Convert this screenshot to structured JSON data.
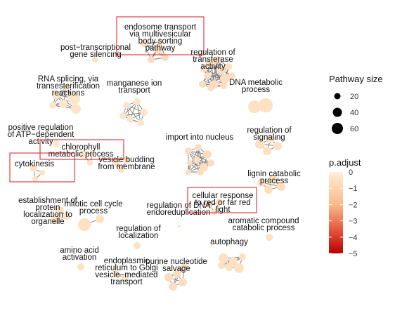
{
  "chart_data": {
    "type": "network",
    "clusters": [
      {
        "label": "endosome transport via multivesicular body sorting pathway",
        "lines": [
          "endosome transport",
          "via multivesicular",
          "body sorting",
          "pathway"
        ],
        "highlighted": true,
        "nodes": 5,
        "p": -0.7
      },
      {
        "label": "post-transcriptional gene silencing",
        "lines": [
          "post−transcriptional",
          "gene silencing"
        ],
        "highlighted": false,
        "nodes": 1,
        "p": -0.5
      },
      {
        "label": "regulation of transferase activity",
        "lines": [
          "regulation of",
          "transferase",
          "activity"
        ],
        "highlighted": false,
        "nodes": 12,
        "p": -0.6
      },
      {
        "label": "RNA splicing, via transesterification reactions",
        "lines": [
          "RNA splicing, via",
          "transesterification",
          "reactions"
        ],
        "highlighted": false,
        "nodes": 6,
        "p": -0.3
      },
      {
        "label": "manganese ion transport",
        "lines": [
          "manganese ion",
          "transport"
        ],
        "highlighted": false,
        "nodes": 6,
        "p": -0.3
      },
      {
        "label": "DNA metabolic process",
        "lines": [
          "DNA metabolic",
          "process"
        ],
        "highlighted": false,
        "nodes": 2,
        "p": -0.5
      },
      {
        "label": "positive regulation of ATP-dependent activity",
        "lines": [
          "positive regulation",
          "of ATP−dependent",
          "activity"
        ],
        "highlighted": false,
        "nodes": 1,
        "p": -0.3
      },
      {
        "label": "chlorophyll metabolic process",
        "lines": [
          "chlorophyll",
          "metabolic process"
        ],
        "highlighted": true,
        "nodes": 3,
        "p": -0.5
      },
      {
        "label": "cytokinesis",
        "lines": [
          "cytokinesis"
        ],
        "highlighted": true,
        "nodes": 3,
        "p": -0.5
      },
      {
        "label": "vesicle budding from membrane",
        "lines": [
          "vesicle budding",
          "from membrane"
        ],
        "highlighted": false,
        "nodes": 3,
        "p": -0.5
      },
      {
        "label": "import into nucleus",
        "lines": [
          "import into nucleus"
        ],
        "highlighted": false,
        "nodes": 9,
        "p": -0.6
      },
      {
        "label": "regulation of signaling",
        "lines": [
          "regulation of",
          "signaling"
        ],
        "highlighted": false,
        "nodes": 4,
        "p": -0.5
      },
      {
        "label": "lignin catabolic process",
        "lines": [
          "lignin catabolic",
          "process"
        ],
        "highlighted": false,
        "nodes": 4,
        "p": -0.6
      },
      {
        "label": "establishment of protein localization to organelle",
        "lines": [
          "establishment of",
          "protein",
          "localization to",
          "organelle"
        ],
        "highlighted": false,
        "nodes": 3,
        "p": -0.5
      },
      {
        "label": "mitotic cell cycle process",
        "lines": [
          "mitotic cell cycle",
          "process"
        ],
        "highlighted": false,
        "nodes": 2,
        "p": -0.5
      },
      {
        "label": "regulation of DNA endoreduplication",
        "lines": [
          "regulation of DNA",
          "endoreduplication"
        ],
        "highlighted": false,
        "nodes": 1,
        "p": -0.5
      },
      {
        "label": "cellular response to red or far red light",
        "lines": [
          "cellular response",
          "to red or far red",
          "light"
        ],
        "highlighted": true,
        "nodes": 3,
        "p": -0.6
      },
      {
        "label": "aromatic compound catabolic process",
        "lines": [
          "aromatic compound",
          "catabolic process"
        ],
        "highlighted": false,
        "nodes": 1,
        "p": -0.5
      },
      {
        "label": "regulation of localization",
        "lines": [
          "regulation of",
          "localization"
        ],
        "highlighted": false,
        "nodes": 1,
        "p": -0.5
      },
      {
        "label": "autophagy",
        "lines": [
          "autophagy"
        ],
        "highlighted": false,
        "nodes": 6,
        "p": -0.5
      },
      {
        "label": "amino acid activation",
        "lines": [
          "amino acid",
          "activation"
        ],
        "highlighted": false,
        "nodes": 1,
        "p": -0.5
      },
      {
        "label": "endoplasmic reticulum to Golgi vesicle-mediated transport",
        "lines": [
          "endoplasmic",
          "reticulum to Golgi",
          "vesicle−mediated",
          "transport"
        ],
        "highlighted": false,
        "nodes": 2,
        "p": -0.5
      },
      {
        "label": "purine nucleotide salvage",
        "lines": [
          "purine nucleotide",
          "salvage"
        ],
        "highlighted": false,
        "nodes": 5,
        "p": -0.6
      }
    ],
    "legend": {
      "size": {
        "title": "Pathway size",
        "values": [
          20,
          40,
          60
        ]
      },
      "color": {
        "title": "p.adjust",
        "ticks": [
          0,
          -1,
          -2,
          -3,
          -4,
          -5
        ],
        "tick_labels": [
          "0",
          "−1",
          "−2",
          "−3",
          "−4",
          "−5"
        ],
        "range": [
          -5,
          0
        ],
        "low_color": "#b30000",
        "mid_color": "#ef8a62",
        "high_color": "#fdecd2"
      }
    },
    "colors": {
      "edge": "#7a7a7a",
      "highlight_box": "#d7191c"
    }
  }
}
